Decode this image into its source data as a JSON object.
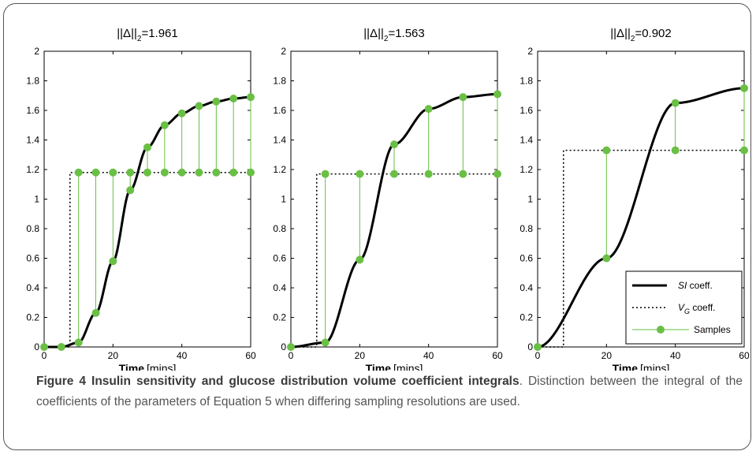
{
  "figure": {
    "label": "Figure 4",
    "title": "Insulin sensitivity and glucose distribution volume coefficient integrals",
    "description": "Distinction between the integral of the coefficients of the parameters of Equation 5 when differing sampling resolutions are used."
  },
  "colors": {
    "si_curve": "#000000",
    "vg_line": "#000000",
    "samples": "#6abf45",
    "frame": "#555555"
  },
  "chart_data": [
    {
      "type": "line",
      "title": "||Δ||₂=1.961",
      "title_parts": {
        "pre": "||Δ||",
        "sub": "2",
        "post": "=1.961"
      },
      "xlabel_bold": "Time",
      "xlabel_unit": "[mins]",
      "xlim": [
        0,
        60
      ],
      "ylim": [
        0,
        2
      ],
      "xticks": [
        "0",
        "20",
        "40",
        "60"
      ],
      "yticks": [
        "0",
        "0.2",
        "0.4",
        "0.6",
        "0.8",
        "1",
        "1.2",
        "1.4",
        "1.6",
        "1.8",
        "2"
      ],
      "grid": false,
      "vg_level": 1.18,
      "vg_step_x": 7.5,
      "sample_times": [
        0,
        5,
        10,
        15,
        20,
        25,
        30,
        35,
        40,
        45,
        50,
        55,
        60
      ],
      "si_values": [
        0,
        0,
        0.03,
        0.23,
        0.58,
        1.06,
        1.35,
        1.5,
        1.58,
        1.63,
        1.66,
        1.68,
        1.69
      ],
      "vg_values": [
        0,
        0,
        1.18,
        1.18,
        1.18,
        1.18,
        1.18,
        1.18,
        1.18,
        1.18,
        1.18,
        1.18,
        1.18
      ],
      "legend": null
    },
    {
      "type": "line",
      "title": "||Δ||₂=1.563",
      "title_parts": {
        "pre": "||Δ||",
        "sub": "2",
        "post": "=1.563"
      },
      "xlabel_bold": "Time",
      "xlabel_unit": "[mins]",
      "xlim": [
        0,
        60
      ],
      "ylim": [
        0,
        2
      ],
      "xticks": [
        "0",
        "20",
        "40",
        "60"
      ],
      "yticks": [
        "0",
        "0.2",
        "0.4",
        "0.6",
        "0.8",
        "1",
        "1.2",
        "1.4",
        "1.6",
        "1.8",
        "2"
      ],
      "grid": false,
      "vg_level": 1.17,
      "vg_step_x": 7.5,
      "sample_times": [
        0,
        10,
        20,
        30,
        40,
        50,
        60
      ],
      "si_values": [
        0,
        0.03,
        0.59,
        1.37,
        1.61,
        1.69,
        1.71
      ],
      "vg_values": [
        0,
        1.17,
        1.17,
        1.17,
        1.17,
        1.17,
        1.17
      ],
      "legend": null
    },
    {
      "type": "line",
      "title": "||Δ||₂=0.902",
      "title_parts": {
        "pre": "||Δ||",
        "sub": "2",
        "post": "=0.902"
      },
      "xlabel_bold": "Time",
      "xlabel_unit": "[mins]",
      "xlim": [
        0,
        60
      ],
      "ylim": [
        0,
        2
      ],
      "xticks": [
        "0",
        "20",
        "40",
        "60"
      ],
      "yticks": [
        "0",
        "0.2",
        "0.4",
        "0.6",
        "0.8",
        "1",
        "1.2",
        "1.4",
        "1.6",
        "1.8",
        "2"
      ],
      "grid": false,
      "vg_level": 1.33,
      "vg_step_x": 7.5,
      "sample_times": [
        0,
        20,
        40,
        60
      ],
      "si_values": [
        0,
        0.6,
        1.65,
        1.75
      ],
      "vg_values": [
        0,
        1.33,
        1.33,
        1.33
      ],
      "legend": {
        "placement": "bottom-right",
        "entries": [
          {
            "italic": "SI",
            "text": " coeff.",
            "style": "solid"
          },
          {
            "italic": "V",
            "sub": "G",
            "text": " coeff.",
            "style": "dotted"
          },
          {
            "italic": "",
            "text": "Samples",
            "style": "samples"
          }
        ]
      }
    }
  ]
}
